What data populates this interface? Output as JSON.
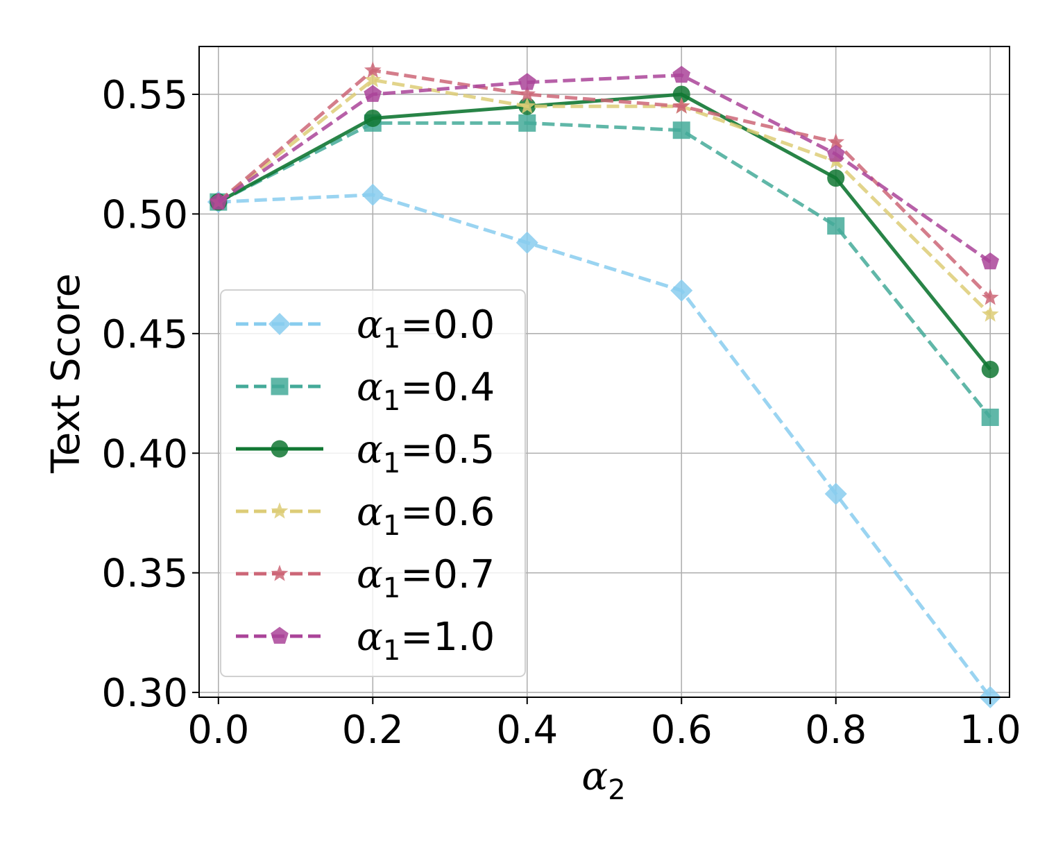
{
  "chart_data": {
    "type": "line",
    "x": [
      0.0,
      0.2,
      0.4,
      0.6,
      0.8,
      1.0
    ],
    "x_ticks": [
      "0.0",
      "0.2",
      "0.4",
      "0.6",
      "0.8",
      "1.0"
    ],
    "y_ticks": [
      "0.30",
      "0.35",
      "0.40",
      "0.45",
      "0.50",
      "0.55"
    ],
    "xlabel": {
      "symbol": "α",
      "sub": "2"
    },
    "ylabel": "Text Score",
    "xlim": [
      -0.025,
      1.025
    ],
    "ylim": [
      0.298,
      0.57
    ],
    "grid": true,
    "legend_position": "center-left",
    "series": [
      {
        "name": "α1=0.0",
        "label": {
          "symbol": "α",
          "sub": "1",
          "value": "=0.0"
        },
        "values": [
          0.505,
          0.508,
          0.488,
          0.468,
          0.383,
          0.298
        ],
        "color": "#88ccee",
        "dashed": true,
        "marker": "diamond"
      },
      {
        "name": "α1=0.4",
        "label": {
          "symbol": "α",
          "sub": "1",
          "value": "=0.4"
        },
        "values": [
          0.505,
          0.538,
          0.538,
          0.535,
          0.495,
          0.415
        ],
        "color": "#44aa99",
        "dashed": true,
        "marker": "square"
      },
      {
        "name": "α1=0.5",
        "label": {
          "symbol": "α",
          "sub": "1",
          "value": "=0.5"
        },
        "values": [
          0.505,
          0.54,
          0.545,
          0.55,
          0.515,
          0.435
        ],
        "color": "#117733",
        "dashed": false,
        "marker": "circle"
      },
      {
        "name": "α1=0.6",
        "label": {
          "symbol": "α",
          "sub": "1",
          "value": "=0.6"
        },
        "values": [
          0.505,
          0.556,
          0.545,
          0.545,
          0.522,
          0.458
        ],
        "color": "#ddcc77",
        "dashed": true,
        "marker": "star"
      },
      {
        "name": "α1=0.7",
        "label": {
          "symbol": "α",
          "sub": "1",
          "value": "=0.7"
        },
        "values": [
          0.505,
          0.56,
          0.55,
          0.545,
          0.53,
          0.465
        ],
        "color": "#cc6677",
        "dashed": true,
        "marker": "star"
      },
      {
        "name": "α1=1.0",
        "label": {
          "symbol": "α",
          "sub": "1",
          "value": "=1.0"
        },
        "values": [
          0.505,
          0.55,
          0.555,
          0.558,
          0.525,
          0.48
        ],
        "color": "#aa4499",
        "dashed": true,
        "marker": "pentagon"
      }
    ]
  }
}
